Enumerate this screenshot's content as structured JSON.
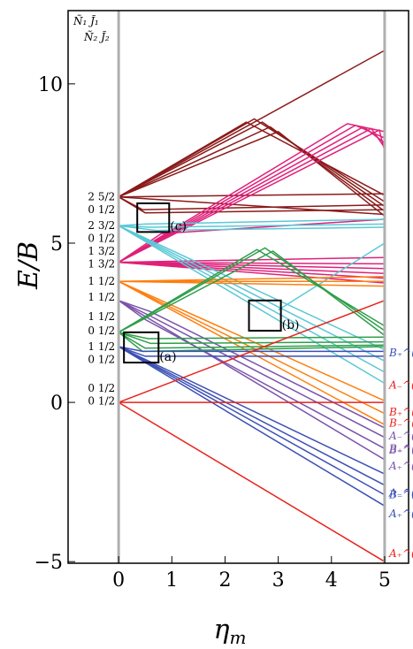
{
  "chart_data": {
    "type": "line",
    "title": "",
    "xlabel": "η_m",
    "ylabel": "E/B",
    "xlim": [
      -0.95,
      5.45
    ],
    "ylim": [
      -5.05,
      12.3
    ],
    "x_ticks": [
      0,
      1,
      2,
      3,
      4,
      5
    ],
    "x_tick_labels": [
      "0",
      "1",
      "2",
      "3",
      "4",
      "5"
    ],
    "y_ticks": [
      -5,
      0,
      5,
      10
    ],
    "y_tick_labels": [
      "−5",
      "0",
      "5",
      "10"
    ],
    "vertical_lines_x": [
      0,
      5
    ],
    "header_labels": [
      "Ñ₁ J̃₁",
      "Ñ₂ J̃₂"
    ],
    "level_labels": [
      {
        "text": "2 5/2",
        "y": 6.45
      },
      {
        "text": "0 1/2",
        "y": 6.05
      },
      {
        "text": "2 3/2",
        "y": 5.55
      },
      {
        "text": "0 1/2",
        "y": 5.15
      },
      {
        "text": "1 3/2",
        "y": 4.75
      },
      {
        "text": "1 3/2",
        "y": 4.35
      },
      {
        "text": "1 1/2",
        "y": 3.8
      },
      {
        "text": "1 1/2",
        "y": 3.3
      },
      {
        "text": "1 1/2",
        "y": 2.7
      },
      {
        "text": "0 1/2",
        "y": 2.25
      },
      {
        "text": "1 1/2",
        "y": 1.75
      },
      {
        "text": "0 1/2",
        "y": 1.35
      },
      {
        "text": "0 1/2",
        "y": 0.45
      },
      {
        "text": "0 1/2",
        "y": 0.05
      }
    ],
    "boxes": [
      {
        "label": "(a)",
        "x": [
          0.1,
          0.75
        ],
        "y": [
          1.25,
          2.2
        ]
      },
      {
        "label": "(b)",
        "x": [
          2.45,
          3.05
        ],
        "y": [
          2.25,
          3.2
        ]
      },
      {
        "label": "(c)",
        "x": [
          0.35,
          0.95
        ],
        "y": [
          5.35,
          6.25
        ]
      }
    ],
    "series": [
      {
        "color": "#8b1a1a",
        "group": "2 5/2",
        "lines": [
          {
            "x": [
              0,
              5
            ],
            "y": [
              6.45,
              11.05
            ]
          },
          {
            "x": [
              0,
              2.4,
              5
            ],
            "y": [
              6.45,
              8.8,
              6.5
            ]
          },
          {
            "x": [
              0,
              2.55,
              5
            ],
            "y": [
              6.45,
              8.9,
              6.3
            ]
          },
          {
            "x": [
              0,
              2.7,
              5
            ],
            "y": [
              6.45,
              8.8,
              6.15
            ]
          },
          {
            "x": [
              0,
              2.85,
              5
            ],
            "y": [
              6.45,
              8.65,
              6.0
            ]
          },
          {
            "x": [
              0,
              3.0,
              5
            ],
            "y": [
              6.45,
              8.5,
              5.85
            ]
          },
          {
            "x": [
              0,
              5
            ],
            "y": [
              6.45,
              6.55
            ]
          },
          {
            "x": [
              0,
              0.45,
              5
            ],
            "y": [
              6.45,
              6.05,
              6.2
            ]
          },
          {
            "x": [
              0,
              0.5,
              5
            ],
            "y": [
              6.45,
              5.95,
              6.05
            ]
          },
          {
            "x": [
              0,
              5
            ],
            "y": [
              6.45,
              5.9
            ]
          }
        ]
      },
      {
        "color": "#e0207a",
        "group": "1 3/2",
        "lines": [
          {
            "x": [
              0,
              4.3,
              5
            ],
            "y": [
              4.4,
              8.75,
              8.5
            ]
          },
          {
            "x": [
              0,
              4.45,
              5
            ],
            "y": [
              4.4,
              8.7,
              8.3
            ]
          },
          {
            "x": [
              0,
              4.6,
              5
            ],
            "y": [
              4.4,
              8.65,
              8.15
            ]
          },
          {
            "x": [
              0,
              4.75,
              5
            ],
            "y": [
              4.4,
              8.6,
              8.0
            ]
          },
          {
            "x": [
              0,
              4.9,
              5
            ],
            "y": [
              4.4,
              8.55,
              7.9
            ]
          },
          {
            "x": [
              0,
              0.8,
              5
            ],
            "y": [
              4.4,
              5.3,
              5.75
            ]
          },
          {
            "x": [
              0,
              5
            ],
            "y": [
              4.4,
              4.55
            ]
          },
          {
            "x": [
              0,
              5
            ],
            "y": [
              4.4,
              4.35
            ]
          },
          {
            "x": [
              0,
              5
            ],
            "y": [
              4.4,
              4.2
            ]
          },
          {
            "x": [
              0,
              5
            ],
            "y": [
              4.4,
              4.05
            ]
          },
          {
            "x": [
              0,
              5
            ],
            "y": [
              4.4,
              3.9
            ]
          },
          {
            "x": [
              0,
              5
            ],
            "y": [
              4.4,
              3.75
            ]
          }
        ]
      },
      {
        "color": "#5bc8d6",
        "group": "2 3/2",
        "lines": [
          {
            "x": [
              0,
              0.5,
              5
            ],
            "y": [
              5.55,
              5.6,
              5.75
            ]
          },
          {
            "x": [
              0,
              0.6,
              5
            ],
            "y": [
              5.55,
              5.5,
              5.6
            ]
          },
          {
            "x": [
              0,
              0.7,
              5
            ],
            "y": [
              5.55,
              5.4,
              5.5
            ]
          },
          {
            "x": [
              0,
              5
            ],
            "y": [
              5.55,
              0.6
            ]
          },
          {
            "x": [
              0,
              5
            ],
            "y": [
              5.55,
              0.95
            ]
          },
          {
            "x": [
              0,
              5
            ],
            "y": [
              5.55,
              1.3
            ]
          },
          {
            "x": [
              0,
              5
            ],
            "y": [
              5.55,
              1.65
            ]
          },
          {
            "x": [
              3.0,
              5
            ],
            "y": [
              2.9,
              5.0
            ]
          }
        ]
      },
      {
        "color": "#ff7f0e",
        "group": "1 1/2",
        "lines": [
          {
            "x": [
              0,
              5
            ],
            "y": [
              3.8,
              3.95
            ]
          },
          {
            "x": [
              0,
              5
            ],
            "y": [
              3.8,
              3.8
            ]
          },
          {
            "x": [
              0,
              5
            ],
            "y": [
              3.8,
              3.65
            ]
          },
          {
            "x": [
              0,
              5
            ],
            "y": [
              3.8,
              0.05
            ]
          },
          {
            "x": [
              0,
              5
            ],
            "y": [
              3.8,
              -0.35
            ]
          },
          {
            "x": [
              0,
              5
            ],
            "y": [
              3.8,
              -0.7
            ]
          }
        ]
      },
      {
        "color": "#7b52ab",
        "group": "1 1/2",
        "lines": [
          {
            "x": [
              0,
              0.6,
              5
            ],
            "y": [
              3.2,
              2.85,
              -0.8
            ]
          },
          {
            "x": [
              0,
              0.55,
              5
            ],
            "y": [
              3.2,
              2.75,
              -1.1
            ]
          },
          {
            "x": [
              0,
              0.5,
              5
            ],
            "y": [
              3.2,
              2.6,
              -1.45
            ]
          },
          {
            "x": [
              0,
              5
            ],
            "y": [
              3.2,
              -1.8
            ]
          }
        ]
      },
      {
        "color": "#2e9e4a",
        "group": "0 1/2",
        "lines": [
          {
            "x": [
              0,
              2.6,
              5
            ],
            "y": [
              2.2,
              4.8,
              2.4
            ]
          },
          {
            "x": [
              0,
              2.75,
              5
            ],
            "y": [
              2.2,
              4.85,
              2.25
            ]
          },
          {
            "x": [
              0,
              2.9,
              5
            ],
            "y": [
              2.2,
              4.75,
              2.1
            ]
          },
          {
            "x": [
              0,
              0.55,
              5
            ],
            "y": [
              2.2,
              2.0,
              2.05
            ]
          },
          {
            "x": [
              0,
              0.6,
              5
            ],
            "y": [
              2.2,
              1.85,
              1.9
            ]
          },
          {
            "x": [
              0,
              0.5,
              5
            ],
            "y": [
              2.2,
              1.7,
              1.8
            ]
          },
          {
            "x": [
              0,
              0.45,
              5
            ],
            "y": [
              2.2,
              1.6,
              1.75
            ]
          }
        ]
      },
      {
        "color": "#3b4fb5",
        "group": "0 1/2",
        "lines": [
          {
            "x": [
              0,
              0.45,
              5
            ],
            "y": [
              1.75,
              1.6,
              1.6
            ]
          },
          {
            "x": [
              0,
              0.5,
              5
            ],
            "y": [
              1.75,
              1.45,
              1.45
            ]
          },
          {
            "x": [
              0,
              5
            ],
            "y": [
              1.75,
              -2.25
            ]
          },
          {
            "x": [
              0,
              5
            ],
            "y": [
              1.75,
              -2.6
            ]
          },
          {
            "x": [
              0,
              5
            ],
            "y": [
              1.75,
              -2.9
            ]
          },
          {
            "x": [
              0,
              5
            ],
            "y": [
              1.75,
              -3.25
            ]
          }
        ]
      },
      {
        "color": "#e8221c",
        "group": "0 1/2",
        "lines": [
          {
            "x": [
              0,
              5
            ],
            "y": [
              0.0,
              0.0
            ]
          },
          {
            "x": [
              0,
              5
            ],
            "y": [
              0.0,
              3.2
            ]
          },
          {
            "x": [
              0,
              5
            ],
            "y": [
              0.0,
              -5.0
            ]
          }
        ]
      }
    ],
    "state_labels": [
      {
        "text": "B₊^(½½)",
        "color": "#3b4fb5",
        "x": 5.13,
        "y": 1.55
      },
      {
        "text": "A₋^(½½)",
        "color": "#e8221c",
        "x": 5.13,
        "y": 0.55
      },
      {
        "text": "B₊^(½)",
        "color": "#e8221c",
        "x": 5.45,
        "y": -0.3
      },
      {
        "text": "B₋^(½½)",
        "color": "#e8221c",
        "x": 5.13,
        "y": -0.65
      },
      {
        "text": "A₋^(½)",
        "color": "#7b52ab",
        "x": 5.45,
        "y": -1.05
      },
      {
        "text": "B₊^(½½)",
        "color": "#7b52ab",
        "x": 5.13,
        "y": -1.45
      },
      {
        "text": "B₋^(½)",
        "color": "#7b52ab",
        "x": 5.45,
        "y": -1.5
      },
      {
        "text": "A₊^(½½)",
        "color": "#7b52ab",
        "x": 5.13,
        "y": -2.0
      },
      {
        "text": "A₋^(½½)",
        "color": "#3b4fb5",
        "x": 5.13,
        "y": -2.85
      },
      {
        "text": "B₋^(½)",
        "color": "#3b4fb5",
        "x": 5.45,
        "y": -2.9
      },
      {
        "text": "A₊^(½½)",
        "color": "#3b4fb5",
        "x": 5.13,
        "y": -3.5
      },
      {
        "text": "A₊^(½½)",
        "color": "#e8221c",
        "x": 5.13,
        "y": -4.75
      }
    ]
  }
}
